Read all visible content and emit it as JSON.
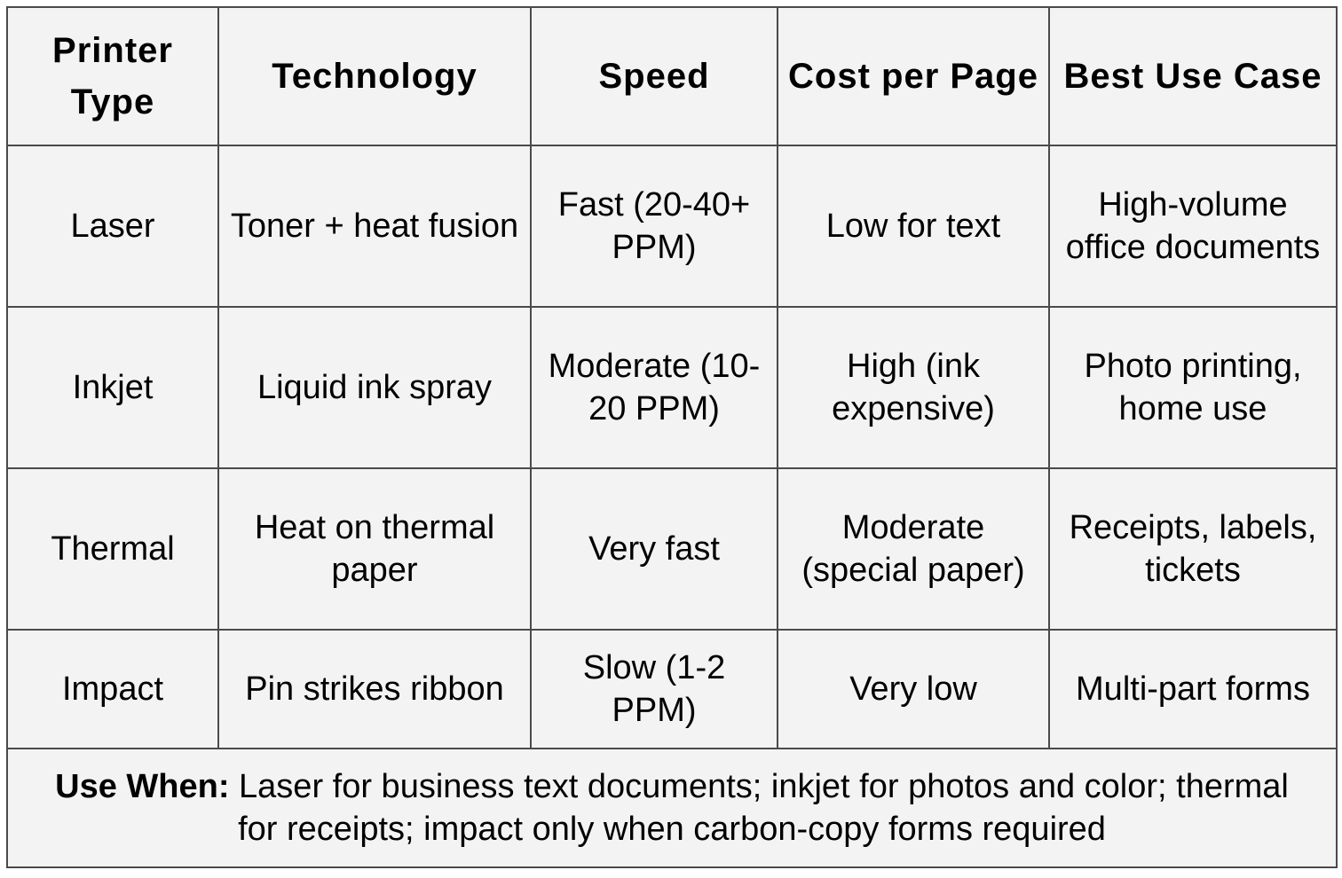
{
  "table": {
    "headers": [
      "Printer Type",
      "Technology",
      "Speed",
      "Cost per Page",
      "Best Use Case"
    ],
    "rows": [
      [
        "Laser",
        "Toner + heat fusion",
        "Fast (20-40+ PPM)",
        "Low for text",
        "High-volume office documents"
      ],
      [
        "Inkjet",
        "Liquid ink spray",
        "Moderate (10-20 PPM)",
        "High (ink expensive)",
        "Photo printing, home use"
      ],
      [
        "Thermal",
        "Heat on thermal paper",
        "Very fast",
        "Moderate (special paper)",
        "Receipts, labels, tickets"
      ],
      [
        "Impact",
        "Pin strikes ribbon",
        "Slow (1-2 PPM)",
        "Very low",
        "Multi-part forms"
      ]
    ],
    "note": {
      "label": "Use When:",
      "text": " Laser for business text documents; inkjet for photos and color; thermal for receipts; impact only when carbon-copy forms required"
    }
  }
}
